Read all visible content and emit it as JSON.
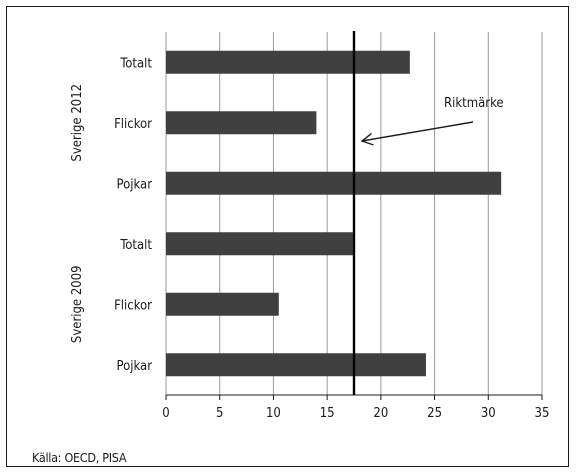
{
  "chart_data": {
    "type": "bar",
    "orientation": "horizontal",
    "groups": [
      {
        "label": "Sverige 2012",
        "categories": [
          "Totalt",
          "Flickor",
          "Pojkar"
        ],
        "values": [
          22.7,
          14.0,
          31.2
        ]
      },
      {
        "label": "Sverige 2009",
        "categories": [
          "Totalt",
          "Flickor",
          "Pojkar"
        ],
        "values": [
          17.4,
          10.5,
          24.2
        ]
      }
    ],
    "xlim": [
      0,
      35
    ],
    "xticks": [
      0,
      5,
      10,
      15,
      20,
      25,
      30,
      35
    ],
    "grid": true,
    "bar_color": "#404040",
    "reference_line": {
      "value": 17.5,
      "label": "Riktmärke"
    },
    "source": "Källa: OECD, PISA"
  }
}
